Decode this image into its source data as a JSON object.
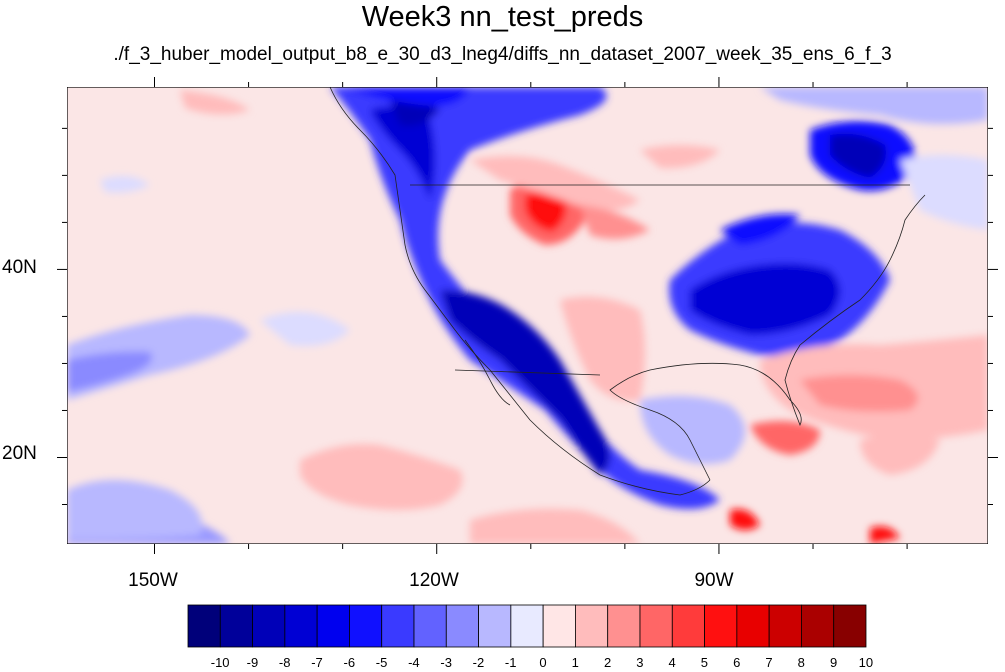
{
  "title": "Week3 nn_test_preds",
  "subtitle": "./f_3_huber_model_output_b8_e_30_d3_lneg4/diffs_nn_dataset_2007_week_35_ens_6_f_3",
  "map": {
    "lat_labels": [
      {
        "text": "40N",
        "lat": 40
      },
      {
        "text": "20N",
        "lat": 20
      }
    ],
    "lon_labels": [
      {
        "text": "150W",
        "lon": -150
      },
      {
        "text": "120W",
        "lon": -120
      },
      {
        "text": "90W",
        "lon": -90
      }
    ],
    "lon_range": [
      -159.3,
      -61.4
    ],
    "lat_range": [
      10.8,
      59.4
    ]
  },
  "colorbar": {
    "labels": [
      "-10",
      "-9",
      "-8",
      "-7",
      "-6",
      "-5",
      "-4",
      "-3",
      "-2",
      "-1",
      "0",
      "1",
      "2",
      "3",
      "4",
      "5",
      "6",
      "7",
      "8",
      "9",
      "10"
    ],
    "colors": [
      "#00007a",
      "#00009a",
      "#0000b8",
      "#0000d4",
      "#0000ef",
      "#1010ff",
      "#3a3aff",
      "#6262ff",
      "#8a8aff",
      "#b8b8ff",
      "#e8eaff",
      "#ffe6e6",
      "#ffbcbc",
      "#ff9090",
      "#ff6666",
      "#ff3b3b",
      "#ff1010",
      "#e80000",
      "#cc0000",
      "#aa0000",
      "#880000"
    ]
  }
}
